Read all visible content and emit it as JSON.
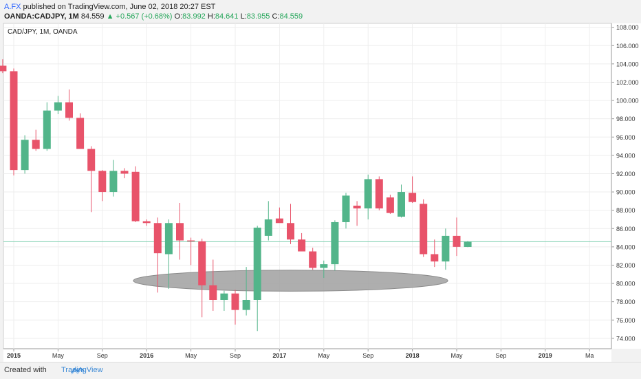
{
  "header": {
    "author": "A.FX",
    "published": " published on TradingView.com, June 02, 2018 20:27 EST",
    "symbol": "OANDA:CADJPY, 1M",
    "last": "84.559",
    "change": "▲ +0.567 (+0.68%)",
    "open_label": "O:",
    "open": "83.992",
    "high_label": "H:",
    "high": "84.641",
    "low_label": "L:",
    "low": "83.955",
    "close_label": "C:",
    "close": "84.559"
  },
  "footer": {
    "created_with": "Created with",
    "brand": "TradingView"
  },
  "colors": {
    "up": "#52b58a",
    "down": "#e8536a",
    "grid": "#eeeeee",
    "ellipse": "#a0a0a0",
    "priceline": "#7fd1b0"
  },
  "chart_data": {
    "type": "candlestick",
    "title": "CAD/JPY, 1M, OANDA",
    "ylim": [
      73,
      108.5
    ],
    "y_ticks": [
      "74.000",
      "76.000",
      "78.000",
      "80.000",
      "82.000",
      "84.000",
      "86.000",
      "88.000",
      "90.000",
      "92.000",
      "94.000",
      "96.000",
      "98.000",
      "100.000",
      "102.000",
      "104.000",
      "106.000",
      "108.000"
    ],
    "x_ticks": [
      {
        "label": "2015",
        "bold": true,
        "m": 0
      },
      {
        "label": "May",
        "bold": false,
        "m": 4
      },
      {
        "label": "Sep",
        "bold": false,
        "m": 8
      },
      {
        "label": "2016",
        "bold": true,
        "m": 12
      },
      {
        "label": "May",
        "bold": false,
        "m": 16
      },
      {
        "label": "Sep",
        "bold": false,
        "m": 20
      },
      {
        "label": "2017",
        "bold": true,
        "m": 24
      },
      {
        "label": "May",
        "bold": false,
        "m": 28
      },
      {
        "label": "Sep",
        "bold": false,
        "m": 32
      },
      {
        "label": "2018",
        "bold": true,
        "m": 36
      },
      {
        "label": "May",
        "bold": false,
        "m": 40
      },
      {
        "label": "Sep",
        "bold": false,
        "m": 44
      },
      {
        "label": "2019",
        "bold": true,
        "m": 48
      },
      {
        "label": "Ma",
        "bold": false,
        "m": 52
      }
    ],
    "candles": [
      {
        "m": -1,
        "o": 103.8,
        "h": 104.5,
        "l": 103.0,
        "c": 103.2
      },
      {
        "m": 0,
        "o": 103.2,
        "h": 103.5,
        "l": 91.8,
        "c": 92.4
      },
      {
        "m": 1,
        "o": 92.4,
        "h": 96.2,
        "l": 92.0,
        "c": 95.7
      },
      {
        "m": 2,
        "o": 95.7,
        "h": 96.8,
        "l": 94.5,
        "c": 94.7
      },
      {
        "m": 3,
        "o": 94.7,
        "h": 99.8,
        "l": 94.5,
        "c": 98.9
      },
      {
        "m": 4,
        "o": 98.9,
        "h": 100.5,
        "l": 98.5,
        "c": 99.8
      },
      {
        "m": 5,
        "o": 99.8,
        "h": 101.2,
        "l": 97.8,
        "c": 98.1
      },
      {
        "m": 6,
        "o": 98.1,
        "h": 98.6,
        "l": 94.7,
        "c": 94.7
      },
      {
        "m": 7,
        "o": 94.7,
        "h": 95.0,
        "l": 87.8,
        "c": 92.3
      },
      {
        "m": 8,
        "o": 92.3,
        "h": 92.4,
        "l": 89.0,
        "c": 90.0
      },
      {
        "m": 9,
        "o": 90.0,
        "h": 93.5,
        "l": 89.5,
        "c": 92.3
      },
      {
        "m": 10,
        "o": 92.3,
        "h": 92.6,
        "l": 91.5,
        "c": 92.0
      },
      {
        "m": 11,
        "o": 92.2,
        "h": 92.8,
        "l": 86.7,
        "c": 86.8
      },
      {
        "m": 12,
        "o": 86.8,
        "h": 87.0,
        "l": 86.3,
        "c": 86.6
      },
      {
        "m": 13,
        "o": 86.6,
        "h": 87.2,
        "l": 79.0,
        "c": 83.3
      },
      {
        "m": 14,
        "o": 83.2,
        "h": 87.0,
        "l": 79.4,
        "c": 86.6
      },
      {
        "m": 15,
        "o": 86.6,
        "h": 88.8,
        "l": 82.6,
        "c": 84.7
      },
      {
        "m": 16,
        "o": 84.7,
        "h": 85.0,
        "l": 82.0,
        "c": 84.6
      },
      {
        "m": 17,
        "o": 84.6,
        "h": 84.9,
        "l": 76.3,
        "c": 79.8
      },
      {
        "m": 18,
        "o": 79.8,
        "h": 82.6,
        "l": 77.0,
        "c": 78.2
      },
      {
        "m": 19,
        "o": 78.2,
        "h": 79.2,
        "l": 77.0,
        "c": 78.9
      },
      {
        "m": 20,
        "o": 78.9,
        "h": 79.3,
        "l": 75.5,
        "c": 77.1
      },
      {
        "m": 21,
        "o": 77.1,
        "h": 81.8,
        "l": 76.5,
        "c": 78.2
      },
      {
        "m": 22,
        "o": 78.2,
        "h": 86.3,
        "l": 74.8,
        "c": 86.1
      },
      {
        "m": 23,
        "o": 85.2,
        "h": 89.0,
        "l": 84.7,
        "c": 87.0
      },
      {
        "m": 24,
        "o": 87.1,
        "h": 88.3,
        "l": 86.8,
        "c": 86.6
      },
      {
        "m": 25,
        "o": 86.6,
        "h": 88.7,
        "l": 84.3,
        "c": 84.8
      },
      {
        "m": 26,
        "o": 84.8,
        "h": 85.5,
        "l": 83.5,
        "c": 83.5
      },
      {
        "m": 27,
        "o": 83.5,
        "h": 83.9,
        "l": 81.5,
        "c": 81.7
      },
      {
        "m": 28,
        "o": 81.7,
        "h": 82.5,
        "l": 80.6,
        "c": 82.1
      },
      {
        "m": 29,
        "o": 82.1,
        "h": 86.9,
        "l": 81.4,
        "c": 86.7
      },
      {
        "m": 30,
        "o": 86.7,
        "h": 89.9,
        "l": 86.0,
        "c": 89.6
      },
      {
        "m": 31,
        "o": 88.5,
        "h": 89.0,
        "l": 86.3,
        "c": 88.2
      },
      {
        "m": 32,
        "o": 88.2,
        "h": 91.9,
        "l": 87.0,
        "c": 91.4
      },
      {
        "m": 33,
        "o": 91.4,
        "h": 91.7,
        "l": 88.0,
        "c": 88.2
      },
      {
        "m": 34,
        "o": 89.4,
        "h": 89.7,
        "l": 87.6,
        "c": 87.7
      },
      {
        "m": 35,
        "o": 87.3,
        "h": 90.8,
        "l": 87.2,
        "c": 90.0
      },
      {
        "m": 36,
        "o": 89.9,
        "h": 91.7,
        "l": 88.8,
        "c": 88.9
      },
      {
        "m": 37,
        "o": 88.7,
        "h": 89.2,
        "l": 82.9,
        "c": 83.2
      },
      {
        "m": 38,
        "o": 83.2,
        "h": 84.8,
        "l": 81.8,
        "c": 82.4
      },
      {
        "m": 39,
        "o": 82.4,
        "h": 86.0,
        "l": 81.5,
        "c": 85.2
      },
      {
        "m": 40,
        "o": 85.2,
        "h": 87.2,
        "l": 83.0,
        "c": 84.0
      },
      {
        "m": 41,
        "o": 83.99,
        "h": 84.64,
        "l": 83.96,
        "c": 84.56
      }
    ],
    "current_price": 84.559,
    "annotation": {
      "type": "ellipse",
      "m_center": 25.0,
      "y_center": 80.3,
      "m_radius": 14.2,
      "y_radius": 1.15
    }
  }
}
